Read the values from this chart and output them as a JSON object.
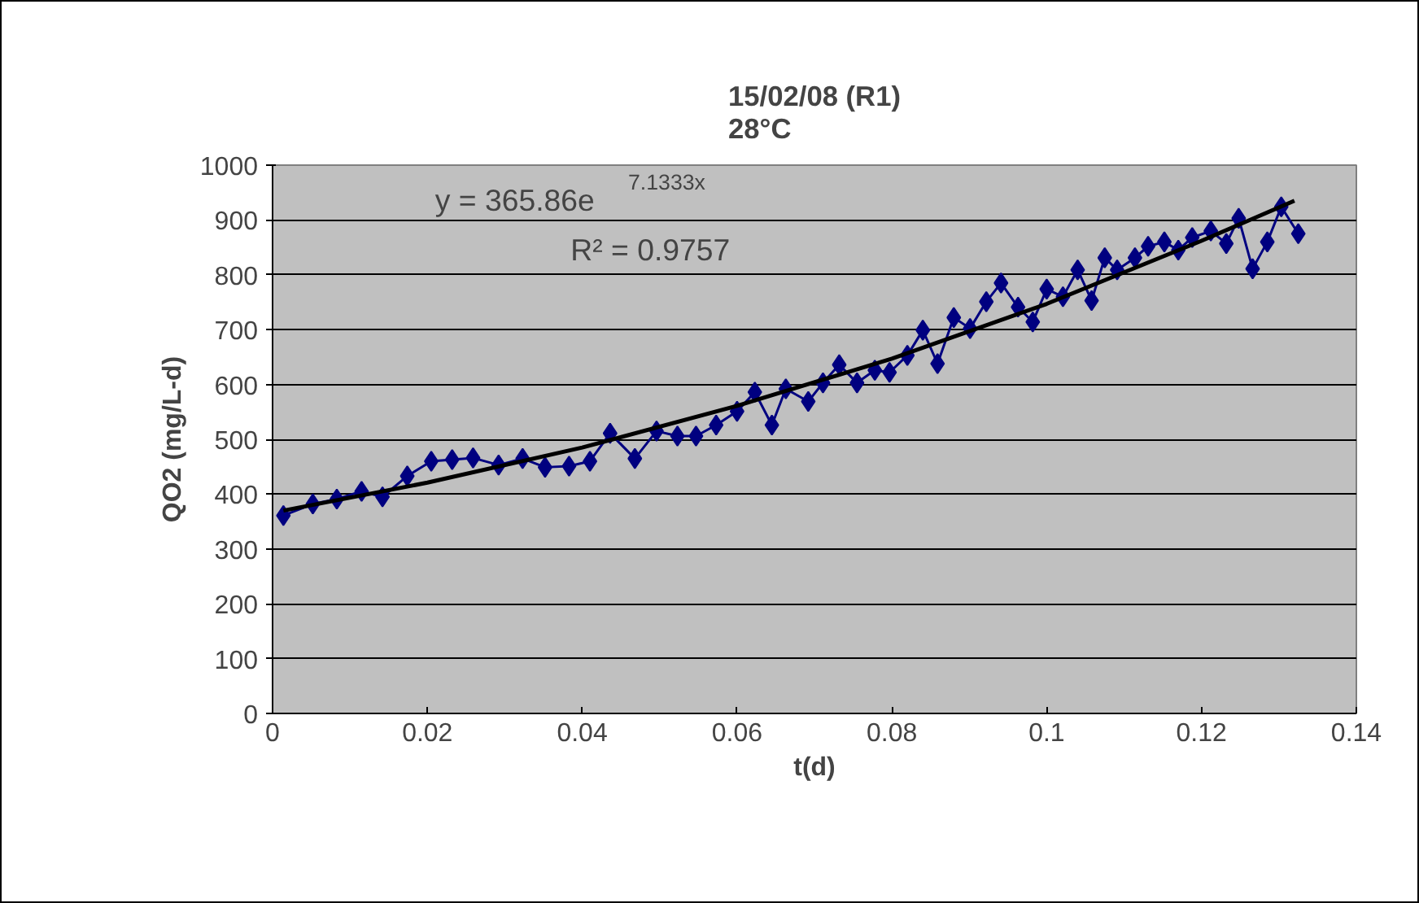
{
  "chart_data": {
    "type": "line",
    "title": "15/02/08 (R1)\n28°C",
    "xlabel": "t(d)",
    "ylabel": "QO2 (mg/L-d)",
    "xlim": [
      0,
      0.14
    ],
    "xticks": [
      0,
      0.02,
      0.04,
      0.06,
      0.08,
      0.1,
      0.12,
      0.14
    ],
    "ylim": [
      0,
      1000
    ],
    "yticks": [
      0,
      100,
      200,
      300,
      400,
      500,
      600,
      700,
      800,
      900,
      1000
    ],
    "grid": "y",
    "annotations": [
      "y = 365.86e$^{7.1333x}$",
      "R² = 0.9757"
    ],
    "series": [
      {
        "marker": "diamond",
        "line_style": "solid",
        "color": "#000080",
        "x": [
          0.0014,
          0.0052,
          0.0083,
          0.0115,
          0.0142,
          0.0174,
          0.0205,
          0.0232,
          0.0259,
          0.0292,
          0.0323,
          0.0352,
          0.0383,
          0.041,
          0.0436,
          0.0468,
          0.0496,
          0.0523,
          0.0547,
          0.0573,
          0.06,
          0.0623,
          0.0645,
          0.0663,
          0.0692,
          0.0711,
          0.0732,
          0.0755,
          0.0778,
          0.0797,
          0.082,
          0.084,
          0.0859,
          0.088,
          0.0901,
          0.0922,
          0.0941,
          0.0963,
          0.0982,
          0.1,
          0.1021,
          0.104,
          0.1058,
          0.1075,
          0.1091,
          0.1114,
          0.1131,
          0.1152,
          0.117,
          0.1188,
          0.1212,
          0.1232,
          0.1248,
          0.1266,
          0.1285,
          0.1303,
          0.1325
        ],
        "values": [
          361,
          382,
          391,
          405,
          395,
          433,
          460,
          463,
          466,
          453,
          465,
          449,
          451,
          460,
          511,
          465,
          515,
          506,
          506,
          526,
          551,
          586,
          526,
          592,
          569,
          603,
          636,
          603,
          626,
          622,
          653,
          699,
          638,
          722,
          702,
          751,
          785,
          741,
          714,
          774,
          760,
          809,
          753,
          831,
          809,
          831,
          852,
          860,
          845,
          868,
          880,
          857,
          903,
          811,
          860,
          924,
          875
        ]
      },
      {
        "marker": "none",
        "line_style": "solid",
        "color": "#000000",
        "x": [
          0.0014,
          0.02,
          0.04,
          0.06,
          0.08,
          0.1,
          0.12,
          0.132
        ],
        "values": [
          370,
          421,
          485,
          561,
          647,
          747,
          862,
          935
        ]
      }
    ]
  }
}
